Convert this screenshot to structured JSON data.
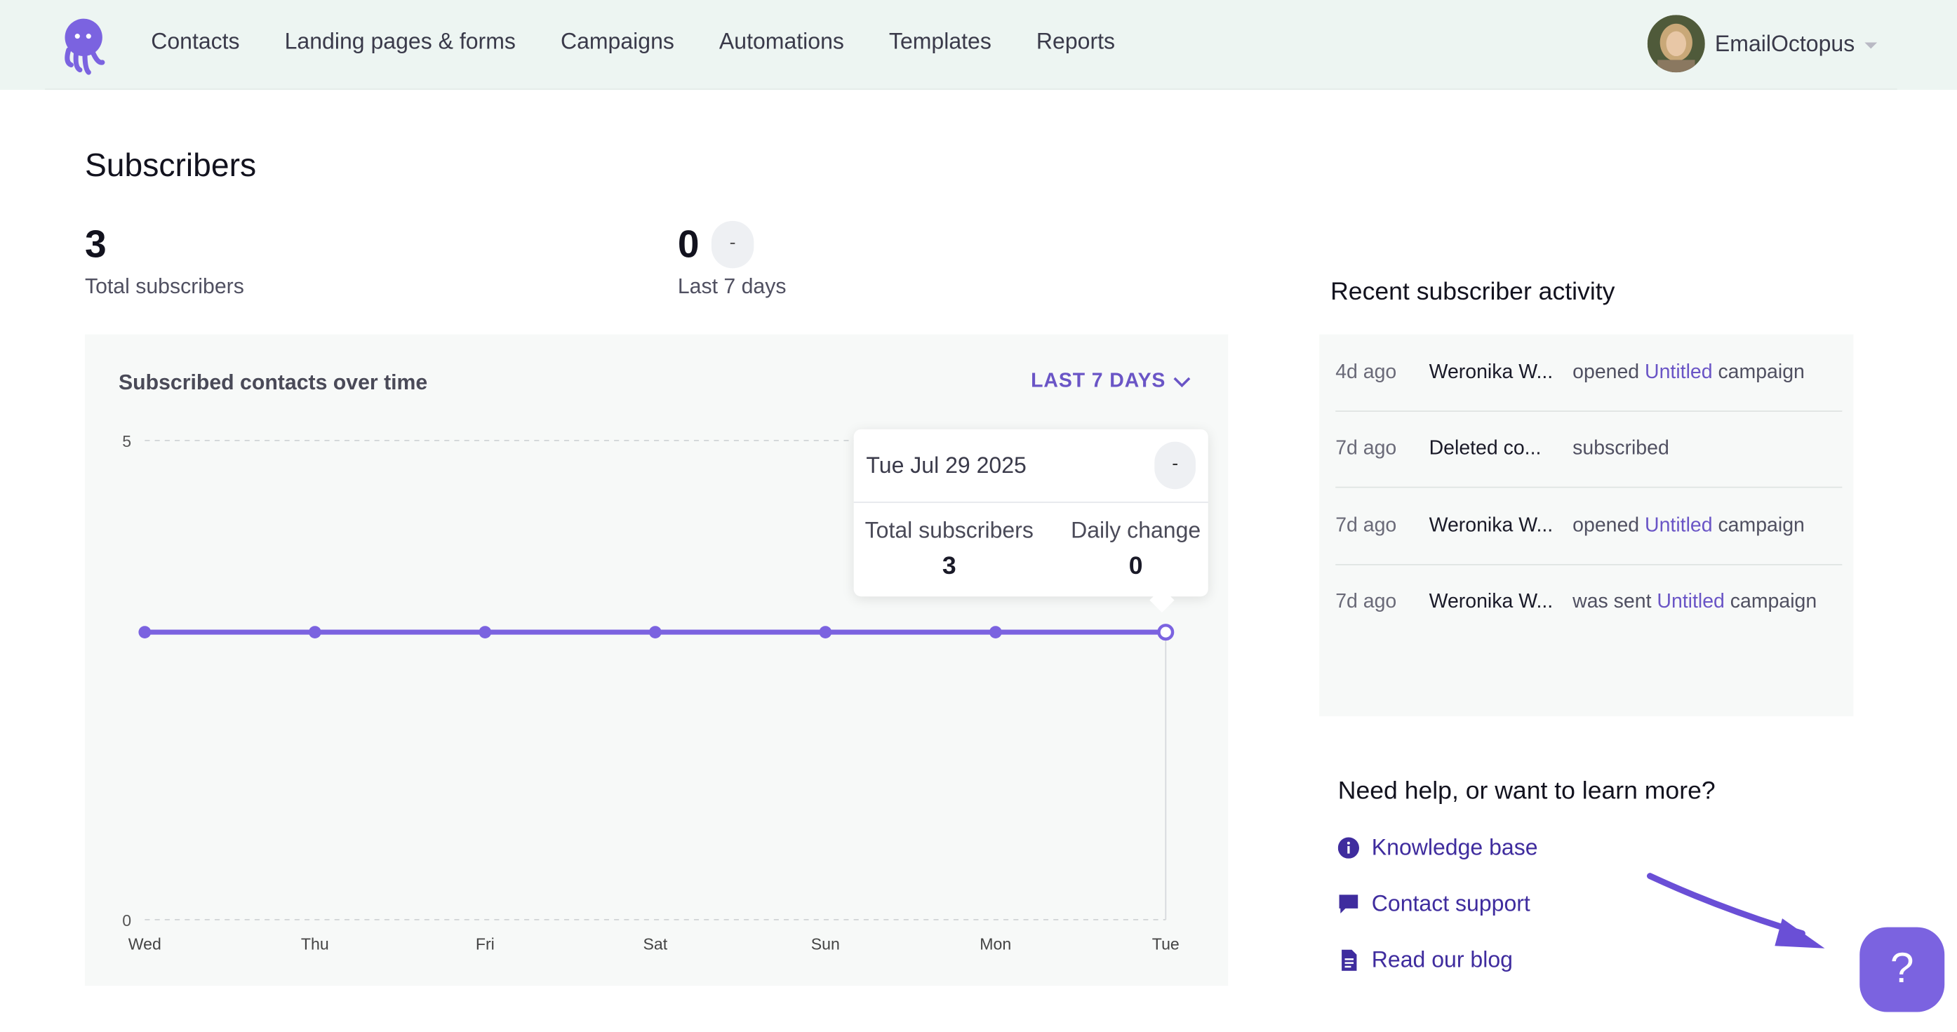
{
  "nav": {
    "items": [
      "Contacts",
      "Landing pages & forms",
      "Campaigns",
      "Automations",
      "Templates",
      "Reports"
    ],
    "account_name": "EmailOctopus"
  },
  "main": {
    "title": "Subscribers",
    "stats": [
      {
        "value": "3",
        "label": "Total subscribers"
      },
      {
        "value": "0",
        "label": "Last 7 days",
        "badge": "-"
      }
    ]
  },
  "chart_data": {
    "type": "line",
    "title": "Subscribed contacts over time",
    "range_selector": "LAST 7 DAYS",
    "categories": [
      "Wed",
      "Thu",
      "Fri",
      "Sat",
      "Sun",
      "Mon",
      "Tue"
    ],
    "series": [
      {
        "values": [
          3,
          3,
          3,
          3,
          3,
          3,
          3
        ]
      }
    ],
    "ylim": [
      0,
      5
    ],
    "y_ticks": [
      "0",
      "5"
    ],
    "highlighted_index": 6,
    "grid": "horizontal dashed at y ticks",
    "colors": {
      "line": "#7b63e0",
      "grid": "#d0d4d6"
    }
  },
  "tooltip": {
    "date": "Tue Jul 29 2025",
    "badge": "-",
    "total_label": "Total subscribers",
    "total_value": "3",
    "change_label": "Daily change",
    "change_value": "0"
  },
  "activity": {
    "title": "Recent subscriber activity",
    "rows": [
      {
        "time": "4d ago",
        "name": "Weronika W...",
        "pre": "opened ",
        "link": "Untitled",
        "post": " campaign"
      },
      {
        "time": "7d ago",
        "name": "Deleted co...",
        "pre": "subscribed",
        "link": "",
        "post": ""
      },
      {
        "time": "7d ago",
        "name": "Weronika W...",
        "pre": "opened ",
        "link": "Untitled",
        "post": " campaign"
      },
      {
        "time": "7d ago",
        "name": "Weronika W...",
        "pre": "was sent ",
        "link": "Untitled",
        "post": " campaign"
      }
    ]
  },
  "help": {
    "title": "Need help, or want to learn more?",
    "links": [
      {
        "label": "Knowledge base",
        "icon": "info-circle-icon"
      },
      {
        "label": "Contact support",
        "icon": "chat-bubble-icon"
      },
      {
        "label": "Read our blog",
        "icon": "document-icon"
      }
    ],
    "fab_label": "?"
  },
  "colors": {
    "accent": "#7b63e0",
    "link": "#6a55c6",
    "header_bg": "#edf5f2"
  }
}
